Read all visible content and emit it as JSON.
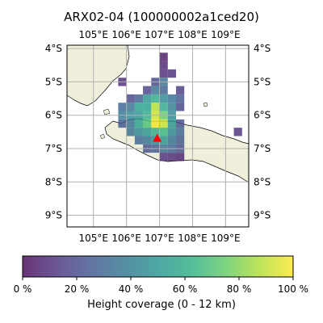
{
  "title": "ARX02-04 (100000002a1ced20)",
  "map": {
    "lon_range": [
      104.2,
      109.7
    ],
    "lat_range": [
      -9.35,
      -3.9
    ],
    "lon_ticks": [
      {
        "v": 105,
        "label": "105°E"
      },
      {
        "v": 106,
        "label": "106°E"
      },
      {
        "v": 107,
        "label": "107°E"
      },
      {
        "v": 108,
        "label": "108°E"
      },
      {
        "v": 109,
        "label": "109°E"
      }
    ],
    "lat_ticks": [
      {
        "v": -4,
        "label": "4°S"
      },
      {
        "v": -5,
        "label": "5°S"
      },
      {
        "v": -6,
        "label": "6°S"
      },
      {
        "v": -7,
        "label": "7°S"
      },
      {
        "v": -8,
        "label": "8°S"
      },
      {
        "v": -9,
        "label": "9°S"
      }
    ],
    "grid": true,
    "land_color": "#efefdb",
    "ocean_color": "#ffffff",
    "marker": {
      "lon": 106.93,
      "lat": -6.7,
      "color": "#ff0000",
      "shape": "triangle"
    },
    "cell_deg": 0.25,
    "cells": [
      [
        107.125,
        -4.25,
        0.05
      ],
      [
        107.125,
        -4.5,
        0.08
      ],
      [
        107.125,
        -4.75,
        0.1
      ],
      [
        107.375,
        -4.75,
        0.12
      ],
      [
        106.875,
        -5.0,
        0.2
      ],
      [
        107.125,
        -5.0,
        0.35
      ],
      [
        105.875,
        -5.0,
        0.1
      ],
      [
        106.625,
        -5.25,
        0.18
      ],
      [
        106.875,
        -5.25,
        0.35
      ],
      [
        107.125,
        -5.25,
        0.28
      ],
      [
        107.625,
        -5.25,
        0.15
      ],
      [
        106.125,
        -5.5,
        0.18
      ],
      [
        106.375,
        -5.5,
        0.28
      ],
      [
        106.625,
        -5.5,
        0.5
      ],
      [
        106.875,
        -5.5,
        0.6
      ],
      [
        107.125,
        -5.5,
        0.45
      ],
      [
        107.375,
        -5.5,
        0.35
      ],
      [
        107.625,
        -5.5,
        0.25
      ],
      [
        105.875,
        -5.75,
        0.3
      ],
      [
        106.125,
        -5.75,
        0.35
      ],
      [
        106.375,
        -5.75,
        0.55
      ],
      [
        106.625,
        -5.75,
        0.55
      ],
      [
        106.875,
        -5.75,
        0.88
      ],
      [
        107.125,
        -5.75,
        0.6
      ],
      [
        107.375,
        -5.75,
        0.4
      ],
      [
        107.625,
        -5.75,
        0.18
      ],
      [
        105.875,
        -6.0,
        0.38
      ],
      [
        106.125,
        -6.0,
        0.45
      ],
      [
        106.375,
        -6.0,
        0.5
      ],
      [
        106.625,
        -6.0,
        0.6
      ],
      [
        106.875,
        -6.0,
        0.92
      ],
      [
        107.125,
        -6.0,
        0.75
      ],
      [
        107.375,
        -6.0,
        0.45
      ],
      [
        105.875,
        -6.25,
        0.25
      ],
      [
        106.125,
        -6.25,
        0.35
      ],
      [
        106.375,
        -6.25,
        0.55
      ],
      [
        106.625,
        -6.25,
        0.7
      ],
      [
        106.875,
        -6.25,
        0.98
      ],
      [
        107.125,
        -6.25,
        0.92
      ],
      [
        107.375,
        -6.25,
        0.5
      ],
      [
        107.625,
        -6.25,
        0.22
      ],
      [
        106.125,
        -6.5,
        0.35
      ],
      [
        106.375,
        -6.5,
        0.45
      ],
      [
        106.625,
        -6.5,
        0.5
      ],
      [
        106.875,
        -6.5,
        0.6
      ],
      [
        107.125,
        -6.5,
        0.65
      ],
      [
        107.375,
        -6.5,
        0.45
      ],
      [
        107.625,
        -6.5,
        0.3
      ],
      [
        109.375,
        -6.5,
        0.12
      ],
      [
        106.375,
        -6.75,
        0.3
      ],
      [
        106.625,
        -6.75,
        0.35
      ],
      [
        106.875,
        -6.75,
        0.45
      ],
      [
        107.125,
        -6.75,
        0.5
      ],
      [
        107.375,
        -6.75,
        0.35
      ],
      [
        107.625,
        -6.75,
        0.25
      ],
      [
        106.625,
        -7.0,
        0.22
      ],
      [
        106.875,
        -7.0,
        0.25
      ],
      [
        107.125,
        -7.0,
        0.35
      ],
      [
        107.375,
        -7.0,
        0.3
      ],
      [
        107.625,
        -7.0,
        0.22
      ],
      [
        107.125,
        -7.25,
        0.12
      ],
      [
        107.375,
        -7.25,
        0.1
      ],
      [
        107.625,
        -7.25,
        0.08
      ]
    ]
  },
  "colorbar": {
    "ticks": [
      {
        "v": 0,
        "label": "0 %"
      },
      {
        "v": 0.2,
        "label": "20 %"
      },
      {
        "v": 0.4,
        "label": "40 %"
      },
      {
        "v": 0.6,
        "label": "60 %"
      },
      {
        "v": 0.8,
        "label": "80 %"
      },
      {
        "v": 1.0,
        "label": "100 %"
      }
    ],
    "label": "Height coverage (0 - 12 km)",
    "colormap": "viridis",
    "alpha": 0.8
  }
}
